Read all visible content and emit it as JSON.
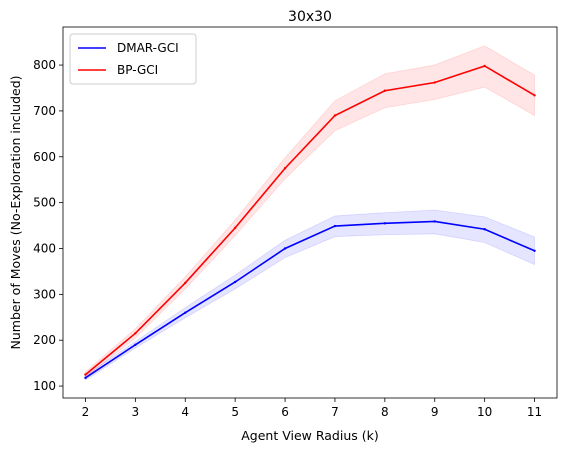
{
  "chart_data": {
    "type": "line",
    "title": "30x30",
    "xlabel": "Agent View Radius (k)",
    "ylabel": "Number of Moves (No-Exploration included)",
    "x": [
      2,
      3,
      4,
      5,
      6,
      7,
      8,
      9,
      10,
      11
    ],
    "xlim": [
      1.55,
      11.45
    ],
    "ylim": [
      74,
      883
    ],
    "xticks": [
      2,
      3,
      4,
      5,
      6,
      7,
      8,
      9,
      10,
      11
    ],
    "yticks": [
      100,
      200,
      300,
      400,
      500,
      600,
      700,
      800
    ],
    "grid": false,
    "legend_position": "top-left",
    "series": [
      {
        "name": "DMAR-GCI",
        "color": "#0000ff",
        "values": [
          118,
          190,
          260,
          327,
          400,
          449,
          455,
          459,
          442,
          395
        ],
        "lower": [
          113,
          183,
          249,
          312,
          380,
          426,
          430,
          432,
          413,
          365
        ],
        "upper": [
          123,
          197,
          271,
          342,
          418,
          471,
          478,
          484,
          469,
          425
        ]
      },
      {
        "name": "BP-GCI",
        "color": "#ff0000",
        "values": [
          125,
          215,
          325,
          445,
          575,
          690,
          744,
          762,
          798,
          734
        ],
        "lower": [
          119,
          205,
          312,
          428,
          552,
          657,
          707,
          725,
          752,
          690
        ],
        "upper": [
          131,
          225,
          338,
          462,
          598,
          722,
          781,
          800,
          842,
          778
        ]
      }
    ]
  }
}
